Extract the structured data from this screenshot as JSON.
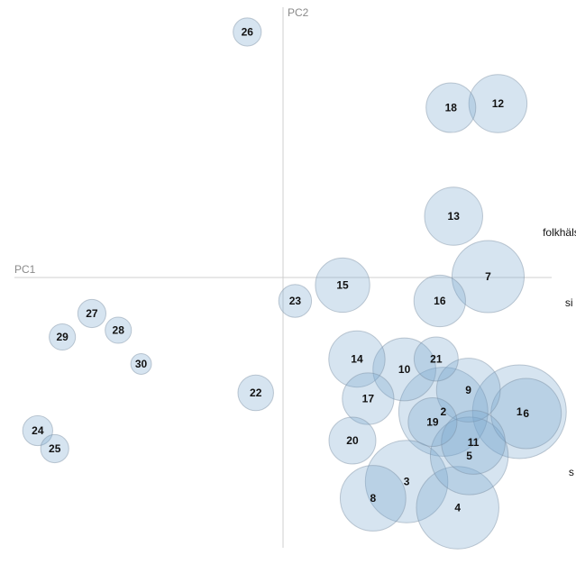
{
  "chart_data": {
    "type": "scatter",
    "title": "",
    "xlabel": "PC1",
    "ylabel": "PC2",
    "xlim": [
      -0.6,
      0.6
    ],
    "ylim": [
      -0.6,
      0.6
    ],
    "points": [
      {
        "label": "1",
        "x": 0.528,
        "y": -0.298,
        "size": 1.0
      },
      {
        "label": "2",
        "x": 0.358,
        "y": -0.298,
        "size": 0.95
      },
      {
        "label": "3",
        "x": 0.276,
        "y": -0.453,
        "size": 0.88
      },
      {
        "label": "4",
        "x": 0.39,
        "y": -0.511,
        "size": 0.88
      },
      {
        "label": "5",
        "x": 0.416,
        "y": -0.396,
        "size": 0.83
      },
      {
        "label": "6",
        "x": 0.543,
        "y": -0.302,
        "size": 0.75
      },
      {
        "label": "7",
        "x": 0.458,
        "y": 0.002,
        "size": 0.77
      },
      {
        "label": "8",
        "x": 0.201,
        "y": -0.49,
        "size": 0.7
      },
      {
        "label": "9",
        "x": 0.414,
        "y": -0.25,
        "size": 0.68
      },
      {
        "label": "10",
        "x": 0.271,
        "y": -0.204,
        "size": 0.67
      },
      {
        "label": "11",
        "x": 0.425,
        "y": -0.366,
        "size": 0.68
      },
      {
        "label": "12",
        "x": 0.48,
        "y": 0.386,
        "size": 0.62
      },
      {
        "label": "13",
        "x": 0.381,
        "y": 0.136,
        "size": 0.62
      },
      {
        "label": "14",
        "x": 0.165,
        "y": -0.181,
        "size": 0.6
      },
      {
        "label": "15",
        "x": 0.133,
        "y": -0.017,
        "size": 0.58
      },
      {
        "label": "16",
        "x": 0.35,
        "y": -0.052,
        "size": 0.55
      },
      {
        "label": "17",
        "x": 0.19,
        "y": -0.269,
        "size": 0.55
      },
      {
        "label": "18",
        "x": 0.375,
        "y": 0.377,
        "size": 0.53
      },
      {
        "label": "19",
        "x": 0.334,
        "y": -0.321,
        "size": 0.52
      },
      {
        "label": "20",
        "x": 0.155,
        "y": -0.362,
        "size": 0.5
      },
      {
        "label": "21",
        "x": 0.342,
        "y": -0.181,
        "size": 0.47
      },
      {
        "label": "22",
        "x": -0.061,
        "y": -0.256,
        "size": 0.38
      },
      {
        "label": "23",
        "x": 0.027,
        "y": -0.052,
        "size": 0.35
      },
      {
        "label": "24",
        "x": -0.548,
        "y": -0.34,
        "size": 0.32
      },
      {
        "label": "25",
        "x": -0.51,
        "y": -0.38,
        "size": 0.3
      },
      {
        "label": "26",
        "x": -0.08,
        "y": 0.545,
        "size": 0.3
      },
      {
        "label": "27",
        "x": -0.427,
        "y": -0.08,
        "size": 0.3
      },
      {
        "label": "28",
        "x": -0.368,
        "y": -0.117,
        "size": 0.28
      },
      {
        "label": "29",
        "x": -0.493,
        "y": -0.132,
        "size": 0.28
      },
      {
        "label": "30",
        "x": -0.317,
        "y": -0.192,
        "size": 0.22
      }
    ],
    "side_labels": [
      {
        "text": "folkhäls",
        "x": 0.58,
        "y": 0.092
      },
      {
        "text": "si",
        "x": 0.63,
        "y": -0.064
      },
      {
        "text": "s",
        "x": 0.638,
        "y": -0.44
      }
    ]
  }
}
